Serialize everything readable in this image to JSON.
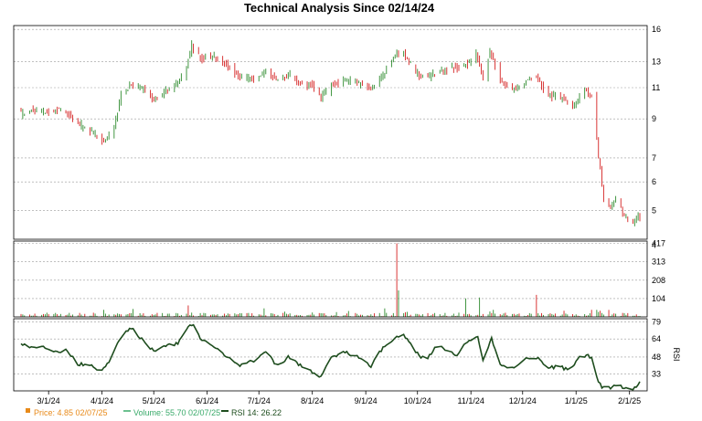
{
  "title": "Technical Analysis Since 02/14/24",
  "colors": {
    "up": "#2e8b2e",
    "down": "#d42020",
    "rsi_line": "#1e4d1e",
    "grid": "#9a9a9a",
    "frame": "#000000",
    "legend_price": "#e88a1a",
    "legend_volume": "#3aaa6a",
    "legend_rsi": "#1e4d1e"
  },
  "legend": {
    "price": "Price: 4.85  02/07/25",
    "volume": "Volume: 55.70  02/07/25",
    "rsi": "RSI 14: 26.22"
  },
  "chart_data": [
    {
      "type": "candlestick",
      "name": "price",
      "yscale": "log",
      "ylim": [
        4.15,
        16.4
      ],
      "y_ticks": [
        4,
        5,
        6,
        7,
        9,
        11,
        13,
        16
      ],
      "x_ticks": [
        "3/1/24",
        "4/1/24",
        "5/1/24",
        "6/1/24",
        "7/1/24",
        "8/1/24",
        "9/1/24",
        "10/1/24",
        "11/1/24",
        "12/1/24",
        "1/1/25",
        "2/1/25"
      ],
      "x_range": [
        "2024-02-14",
        "2025-02-07"
      ],
      "anchors": [
        [
          "2024-02-14",
          9.3
        ],
        [
          "2024-02-21",
          9.6
        ],
        [
          "2024-02-28",
          9.4
        ],
        [
          "2024-03-05",
          9.6
        ],
        [
          "2024-03-12",
          9.3
        ],
        [
          "2024-03-20",
          8.6
        ],
        [
          "2024-03-27",
          8.2
        ],
        [
          "2024-04-02",
          7.8
        ],
        [
          "2024-04-08",
          8.5
        ],
        [
          "2024-04-12",
          10.5
        ],
        [
          "2024-04-18",
          11.2
        ],
        [
          "2024-04-25",
          10.8
        ],
        [
          "2024-05-01",
          10.2
        ],
        [
          "2024-05-08",
          10.8
        ],
        [
          "2024-05-15",
          11.4
        ],
        [
          "2024-05-20",
          12.5
        ],
        [
          "2024-05-23",
          14.5
        ],
        [
          "2024-05-28",
          13.4
        ],
        [
          "2024-06-05",
          13.5
        ],
        [
          "2024-06-12",
          12.8
        ],
        [
          "2024-06-20",
          11.8
        ],
        [
          "2024-06-27",
          11.6
        ],
        [
          "2024-07-05",
          12.2
        ],
        [
          "2024-07-12",
          11.5
        ],
        [
          "2024-07-19",
          12.0
        ],
        [
          "2024-07-26",
          11.2
        ],
        [
          "2024-08-01",
          11.2
        ],
        [
          "2024-08-06",
          10.3
        ],
        [
          "2024-08-12",
          11.2
        ],
        [
          "2024-08-20",
          11.6
        ],
        [
          "2024-08-27",
          11.4
        ],
        [
          "2024-09-05",
          11.0
        ],
        [
          "2024-09-12",
          12.2
        ],
        [
          "2024-09-18",
          13.6
        ],
        [
          "2024-09-23",
          13.8
        ],
        [
          "2024-09-30",
          12.0
        ],
        [
          "2024-10-08",
          11.8
        ],
        [
          "2024-10-15",
          12.3
        ],
        [
          "2024-10-22",
          12.5
        ],
        [
          "2024-10-29",
          12.8
        ],
        [
          "2024-11-04",
          13.6
        ],
        [
          "2024-11-08",
          11.5
        ],
        [
          "2024-11-12",
          14.0
        ],
        [
          "2024-11-18",
          11.5
        ],
        [
          "2024-11-25",
          10.8
        ],
        [
          "2024-12-02",
          11.5
        ],
        [
          "2024-12-09",
          11.8
        ],
        [
          "2024-12-16",
          10.4
        ],
        [
          "2024-12-23",
          10.3
        ],
        [
          "2024-12-30",
          9.8
        ],
        [
          "2025-01-06",
          10.8
        ],
        [
          "2025-01-10",
          10.5
        ],
        [
          "2025-01-14",
          7.0
        ],
        [
          "2025-01-17",
          5.4
        ],
        [
          "2025-01-21",
          5.0
        ],
        [
          "2025-01-24",
          5.4
        ],
        [
          "2025-01-28",
          4.9
        ],
        [
          "2025-02-03",
          4.6
        ],
        [
          "2025-02-07",
          4.85
        ]
      ],
      "volatility": 0.018,
      "up_color": "#2e8b2e",
      "down_color": "#d42020"
    },
    {
      "type": "bar",
      "name": "volume",
      "ylim": [
        0,
        430
      ],
      "y_ticks": [
        104,
        208,
        313,
        417
      ],
      "baseline": 14,
      "spikes": [
        [
          "2024-04-20",
          45
        ],
        [
          "2024-05-22",
          65
        ],
        [
          "2024-07-17",
          30
        ],
        [
          "2024-08-02",
          25
        ],
        [
          "2024-09-20",
          417
        ],
        [
          "2024-09-21",
          150
        ],
        [
          "2024-10-30",
          105
        ],
        [
          "2024-11-07",
          110
        ],
        [
          "2024-11-15",
          40
        ],
        [
          "2024-12-10",
          125
        ],
        [
          "2024-12-26",
          35
        ],
        [
          "2025-01-14",
          40
        ],
        [
          "2025-01-16",
          35
        ]
      ]
    },
    {
      "type": "line",
      "name": "rsi",
      "ylim": [
        18,
        82
      ],
      "y_ticks": [
        33,
        48,
        64,
        79
      ],
      "ylabel": "RSI",
      "anchors": [
        [
          "2024-02-14",
          60
        ],
        [
          "2024-02-20",
          56
        ],
        [
          "2024-02-28",
          57
        ],
        [
          "2024-03-05",
          52
        ],
        [
          "2024-03-12",
          54
        ],
        [
          "2024-03-18",
          42
        ],
        [
          "2024-03-26",
          41
        ],
        [
          "2024-04-01",
          35
        ],
        [
          "2024-04-06",
          46
        ],
        [
          "2024-04-12",
          66
        ],
        [
          "2024-04-18",
          74
        ],
        [
          "2024-04-25",
          62
        ],
        [
          "2024-05-02",
          52
        ],
        [
          "2024-05-08",
          58
        ],
        [
          "2024-05-15",
          60
        ],
        [
          "2024-05-21",
          74
        ],
        [
          "2024-05-25",
          78
        ],
        [
          "2024-05-28",
          63
        ],
        [
          "2024-06-05",
          58
        ],
        [
          "2024-06-12",
          48
        ],
        [
          "2024-06-20",
          40
        ],
        [
          "2024-06-27",
          44
        ],
        [
          "2024-07-05",
          52
        ],
        [
          "2024-07-12",
          40
        ],
        [
          "2024-07-18",
          48
        ],
        [
          "2024-07-26",
          40
        ],
        [
          "2024-08-02",
          34
        ],
        [
          "2024-08-06",
          30
        ],
        [
          "2024-08-12",
          48
        ],
        [
          "2024-08-20",
          52
        ],
        [
          "2024-08-28",
          48
        ],
        [
          "2024-09-04",
          40
        ],
        [
          "2024-09-10",
          54
        ],
        [
          "2024-09-18",
          66
        ],
        [
          "2024-09-23",
          68
        ],
        [
          "2024-09-30",
          52
        ],
        [
          "2024-10-06",
          45
        ],
        [
          "2024-10-12",
          58
        ],
        [
          "2024-10-18",
          55
        ],
        [
          "2024-10-24",
          50
        ],
        [
          "2024-10-30",
          62
        ],
        [
          "2024-11-05",
          66
        ],
        [
          "2024-11-08",
          45
        ],
        [
          "2024-11-13",
          64
        ],
        [
          "2024-11-18",
          42
        ],
        [
          "2024-11-25",
          38
        ],
        [
          "2024-12-02",
          46
        ],
        [
          "2024-12-09",
          48
        ],
        [
          "2024-12-15",
          38
        ],
        [
          "2024-12-22",
          40
        ],
        [
          "2024-12-28",
          36
        ],
        [
          "2025-01-04",
          50
        ],
        [
          "2025-01-10",
          48
        ],
        [
          "2025-01-13",
          30
        ],
        [
          "2025-01-16",
          20
        ],
        [
          "2025-01-24",
          22
        ],
        [
          "2025-01-30",
          21
        ],
        [
          "2025-02-04",
          20
        ],
        [
          "2025-02-06",
          24
        ],
        [
          "2025-02-07",
          26.22
        ]
      ],
      "color": "#1e4d1e"
    }
  ]
}
